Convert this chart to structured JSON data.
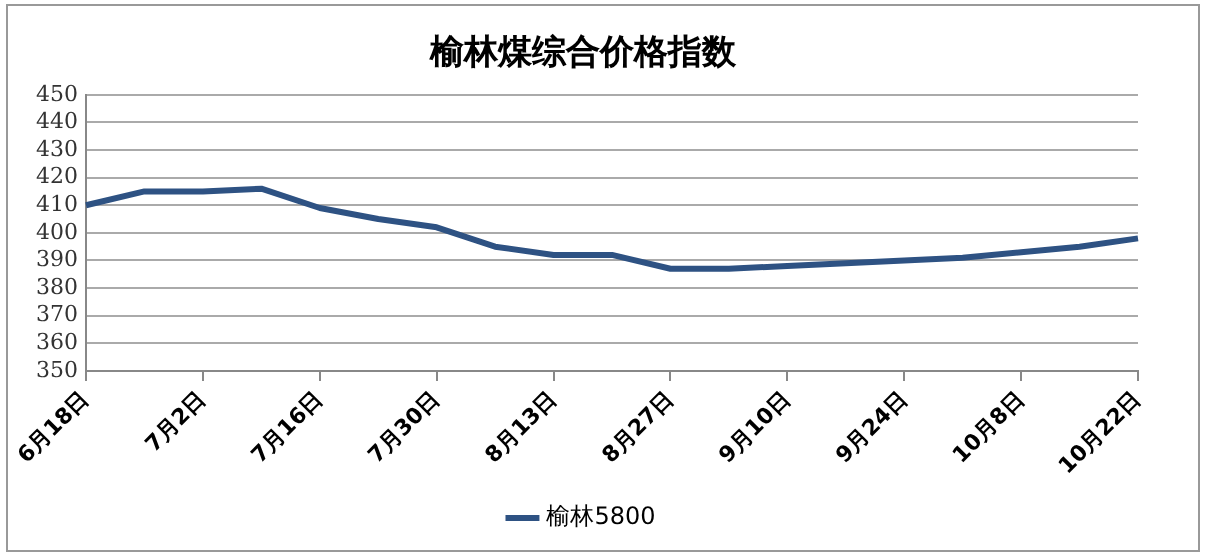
{
  "chart_data": {
    "type": "line",
    "title": "榆林煤综合价格指数",
    "categories": [
      "6月18日",
      null,
      "7月2日",
      null,
      "7月16日",
      null,
      "7月30日",
      null,
      "8月13日",
      null,
      "8月27日",
      null,
      "9月10日",
      null,
      "9月24日",
      null,
      "10月8日",
      null,
      "10月22日"
    ],
    "series": [
      {
        "name": "榆林5800",
        "color": "#2e5283",
        "values": [
          410,
          415,
          415,
          416,
          409,
          405,
          402,
          395,
          392,
          392,
          387,
          387,
          388,
          389,
          390,
          391,
          393,
          395,
          398
        ]
      }
    ],
    "ylim": [
      350,
      450
    ],
    "yticks": [
      350,
      360,
      370,
      380,
      390,
      400,
      410,
      420,
      430,
      440,
      450
    ],
    "grid": "y",
    "legend": "bottom",
    "marker": "none",
    "line_style": "solid"
  }
}
